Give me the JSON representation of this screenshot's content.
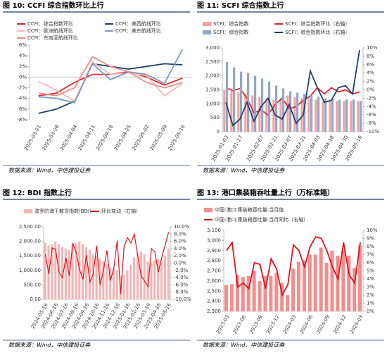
{
  "chart_data": [
    {
      "type": "line",
      "title": "图 10: CCFI 综合指数环比上行",
      "source": "数据来源：Wind，中信建投证券",
      "categories": [
        "2025-03-21",
        "2025-03-28",
        "2025-04-04",
        "2025-04-11",
        "2025-04-18",
        "2025-04-25",
        "2025-05-02",
        "2025-05-09",
        "2025-05-16"
      ],
      "ylim": [
        -8,
        6
      ],
      "yticks": [
        {
          "value": -8,
          "label": "-8%"
        },
        {
          "value": -6,
          "label": "-6%"
        },
        {
          "value": -4,
          "label": "-4%"
        },
        {
          "value": -2,
          "label": "-2%"
        },
        {
          "value": 0,
          "label": "0%"
        },
        {
          "value": 2,
          "label": "2%"
        },
        {
          "value": 4,
          "label": "4%"
        },
        {
          "value": 6,
          "label": "6%"
        }
      ],
      "series": [
        {
          "name": "CCFI：综合指数环比",
          "color": "#e8222a",
          "values": [
            -3.5,
            -3,
            -1,
            0.5,
            0.5,
            1,
            0,
            -1.5,
            -0.2
          ]
        },
        {
          "name": "CCFI：美西航线环比",
          "color": "#1f3f6e",
          "values": [
            -6.8,
            -6,
            -4.5,
            2.5,
            2,
            1.5,
            2,
            2.5,
            2.3
          ]
        },
        {
          "name": "CCFI：欧洲航线环比",
          "color": "#f6b8b8",
          "values": [
            -0.8,
            -2.5,
            -4.5,
            2.8,
            0.5,
            0.8,
            0.3,
            -3.5,
            -1.2
          ]
        },
        {
          "name": "CCFI：美东航线环比",
          "color": "#7a9cc0",
          "values": [
            -3.7,
            -4,
            -4.8,
            2.5,
            -0.5,
            1,
            0.5,
            -1.2,
            5.2
          ]
        },
        {
          "name": "CCFI：东南亚航线环比",
          "color": "#f08a8a",
          "values": [
            -3,
            -3.5,
            -2,
            3.8,
            2,
            1,
            -1,
            -2,
            -1
          ]
        }
      ]
    },
    {
      "type": "combo",
      "title": "图 11: SCFI 综合指数上行",
      "source": "数据来源：Wind，中信建投证券",
      "categories": [
        "2025-01-03",
        null,
        "2025-01-17",
        null,
        null,
        "2025-02-07",
        null,
        "2025-02-21",
        null,
        "2025-03-07",
        null,
        "2025-03-21",
        null,
        "2025-04-03",
        null,
        "2025-04-18",
        null,
        "2025-04-30",
        null,
        "2025-05-16"
      ],
      "ylim": [
        0,
        3000
      ],
      "yticks": [
        0,
        500,
        {
          "value": 1000,
          "label": "1,000"
        },
        {
          "value": 1500,
          "label": "1,500"
        },
        {
          "value": 2000,
          "label": "2,000"
        },
        {
          "value": 2500,
          "label": "2,500"
        },
        {
          "value": 3000,
          "label": "3,000"
        }
      ],
      "y2lim": [
        -10,
        10
      ],
      "y2ticks": [
        {
          "value": -10,
          "label": "-10%"
        },
        {
          "value": -8,
          "label": "-8%"
        },
        {
          "value": -6,
          "label": "-6%"
        },
        {
          "value": -4,
          "label": "-4%"
        },
        {
          "value": -2,
          "label": "-2%"
        },
        {
          "value": 0,
          "label": "0%"
        },
        {
          "value": 2,
          "label": "2%"
        },
        {
          "value": 4,
          "label": "4%"
        },
        {
          "value": 6,
          "label": "6%"
        },
        {
          "value": 8,
          "label": "8%"
        },
        {
          "value": 10,
          "label": "10%"
        }
      ],
      "series": [
        {
          "name": "SCFI：综合指数",
          "type": "bar",
          "color": "#f4a0a0",
          "values": [
            1500,
            1450,
            1400,
            1350,
            1300,
            1250,
            1200,
            1150,
            1150,
            1300,
            1250,
            1200,
            1200,
            1150,
            1100,
            1100,
            1100,
            1100,
            1100,
            1100
          ]
        },
        {
          "name": "SCFI：综合指数环比（右轴）",
          "type": "line",
          "axis": "y2",
          "color": "#e8222a",
          "values": [
            0.5,
            -0.2,
            0.3,
            -2,
            -5.5,
            -4.8,
            -6,
            -3.5,
            -2,
            -4.5,
            -4,
            -2.5,
            -1.5,
            0.5,
            -1,
            0.5,
            -0.5,
            0,
            -1,
            -0.5
          ]
        },
        {
          "name": "SCFI：综合指数",
          "type": "bar",
          "color": "#8fa9c8",
          "values": [
            2500,
            2300,
            2150,
            2100,
            2000,
            1900,
            1800,
            1650,
            1550,
            1450,
            1400,
            1350,
            1300,
            1250,
            1200,
            1200,
            1150,
            1150,
            1150,
            1100
          ]
        },
        {
          "name": "SCFI：综合指数环比（右轴）",
          "type": "line",
          "axis": "y2",
          "color": "#1f3f6e",
          "values": [
            -3,
            -8.5,
            -7,
            -3,
            -7.5,
            -4,
            -2,
            -6,
            -7,
            -3.5,
            -8,
            -6,
            4.5,
            0.5,
            -3,
            -2.5,
            0.5,
            1,
            -1,
            9.5
          ]
        }
      ]
    },
    {
      "type": "combo",
      "title": "图 12: BDI 指数上行",
      "source": "数据来源：Wind，中信建投证券",
      "categories": [
        "2024-05-16",
        null,
        null,
        "2024-06-16",
        null,
        null,
        "2024-07-16",
        null,
        null,
        "2024-08-16",
        null,
        null,
        "2024-09-16",
        null,
        null,
        "2024-10-16",
        null,
        null,
        "2024-11-16",
        null,
        null,
        "2024-12-16",
        null,
        null,
        "2025-01-16",
        null,
        null,
        "2025-02-16",
        null,
        null,
        "2025-03-16",
        null,
        null,
        "2025-04-16",
        null,
        null,
        "2025-05-16"
      ],
      "ylim": [
        0,
        2500
      ],
      "yticks": [
        {
          "value": 0,
          "label": "0.00"
        },
        {
          "value": 500,
          "label": "500.00"
        },
        {
          "value": 1000,
          "label": "1,000.00"
        },
        {
          "value": 1500,
          "label": "1,500.00"
        },
        {
          "value": 2000,
          "label": "2,000.00"
        },
        {
          "value": 2500,
          "label": "2,500.00"
        }
      ],
      "y2lim": [
        -10,
        10
      ],
      "y2ticks": [
        {
          "value": -10,
          "label": "-10.0%"
        },
        {
          "value": -8,
          "label": "-8.0%"
        },
        {
          "value": -6,
          "label": "-6.0%"
        },
        {
          "value": -4,
          "label": "-4.0%"
        },
        {
          "value": -2,
          "label": "-2.0%"
        },
        {
          "value": 0,
          "label": "0.0%"
        },
        {
          "value": 2,
          "label": "2.0%"
        },
        {
          "value": 4,
          "label": "4.0%"
        },
        {
          "value": 6,
          "label": "6.0%"
        },
        {
          "value": 8,
          "label": "8.0%"
        },
        {
          "value": 10,
          "label": "10.0%"
        }
      ],
      "series": [
        {
          "name": "波罗的海干散货指数(BDI)",
          "type": "bar",
          "color": "#f6b3b3",
          "values": [
            1950,
            1850,
            1900,
            2000,
            1900,
            1800,
            1750,
            1700,
            1850,
            1950,
            2000,
            1900,
            1800,
            1700,
            1550,
            1500,
            1400,
            1300,
            1200,
            1100,
            1050,
            1000,
            800,
            850,
            1000,
            1200,
            1450,
            1600,
            1650,
            1550,
            1300,
            1250,
            1350,
            1400,
            1350,
            1500,
            1750
          ]
        },
        {
          "name": "环比变动（右轴）",
          "type": "line",
          "axis": "y2",
          "color": "#e8101a",
          "values": [
            2.5,
            -3,
            4.2,
            3.8,
            -2.5,
            -4,
            1.5,
            -3.5,
            5.5,
            3,
            -1.8,
            -4.5,
            2.2,
            -5.2,
            -3,
            4.8,
            -6,
            -2,
            3.5,
            -4.8,
            -1.5,
            6.2,
            -8.5,
            4.5,
            7,
            5.5,
            8,
            2,
            -3.5,
            -5,
            -6.5,
            4,
            3,
            -2.5,
            1.5,
            5,
            8.5
          ]
        }
      ]
    },
    {
      "type": "combo",
      "title": "图 13: 港口集装箱吞吐量上行（万标准箱）",
      "source": "数据来源：Wind，中信建投证券",
      "categories": [
        "2023-03",
        null,
        null,
        "2023-06",
        null,
        null,
        "2023-09",
        null,
        null,
        "2023-12",
        null,
        null,
        "2024-03",
        null,
        null,
        "2024-06",
        null,
        null,
        "2024-09",
        null,
        null,
        "2024-12",
        null,
        null,
        "2025-03"
      ],
      "ylim": [
        2300,
        3100
      ],
      "yticks": [
        {
          "value": 2300,
          "label": "2,300"
        },
        {
          "value": 2400,
          "label": "2,400"
        },
        {
          "value": 2500,
          "label": "2,500"
        },
        {
          "value": 2600,
          "label": "2,600"
        },
        {
          "value": 2700,
          "label": "2,700"
        },
        {
          "value": 2800,
          "label": "2,800"
        },
        {
          "value": 2900,
          "label": "2,900"
        },
        {
          "value": 3000,
          "label": "3,000"
        },
        {
          "value": 3100,
          "label": "3,100"
        }
      ],
      "y2lim": [
        0,
        10
      ],
      "y2ticks": [
        {
          "value": 0,
          "label": "0%"
        },
        {
          "value": 1,
          "label": "1%"
        },
        {
          "value": 2,
          "label": "2%"
        },
        {
          "value": 3,
          "label": "3%"
        },
        {
          "value": 4,
          "label": "4%"
        },
        {
          "value": 5,
          "label": "5%"
        },
        {
          "value": 6,
          "label": "6%"
        },
        {
          "value": 7,
          "label": "7%"
        },
        {
          "value": 8,
          "label": "8%"
        },
        {
          "value": 9,
          "label": "9%"
        },
        {
          "value": 10,
          "label": "10%"
        }
      ],
      "series": [
        {
          "name": "中国:港口:集装箱吞吐量:当月值",
          "type": "bar",
          "color": "#f28e8e",
          "values": [
            2560,
            2570,
            2660,
            2640,
            2650,
            2700,
            2600,
            2650,
            2650,
            2680,
            2580,
            2460,
            2720,
            2790,
            2800,
            2860,
            2860,
            2930,
            2780,
            2900,
            2850,
            2900,
            2850,
            2730,
            2950
          ]
        },
        {
          "name": "中国:港口:集装箱吞吐量:当月同比（右轴）",
          "type": "line",
          "axis": "y2",
          "color": "#e8101a",
          "values": [
            7.5,
            8.5,
            3,
            3.5,
            2.8,
            6,
            5.8,
            2.8,
            6.5,
            5.2,
            2,
            3.3,
            8.2,
            7.5,
            5.5,
            8,
            9.2,
            9,
            7.5,
            5.5,
            4,
            8.5,
            4.5,
            3.5,
            8.5
          ]
        }
      ]
    }
  ]
}
